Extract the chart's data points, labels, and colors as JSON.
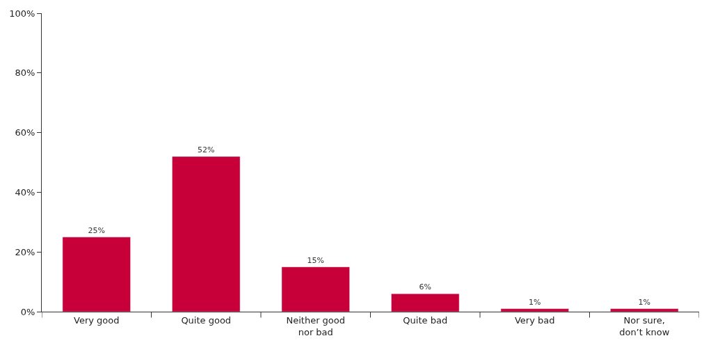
{
  "chart_data": {
    "type": "bar",
    "categories": [
      "Very good",
      "Quite good",
      "Neither good\nnor bad",
      "Quite bad",
      "Very bad",
      "Nor sure,\ndon’t know"
    ],
    "values": [
      25,
      52,
      15,
      6,
      1,
      1
    ],
    "color": "#c8003a",
    "value_labels": [
      "25%",
      "52%",
      "15%",
      "6%",
      "1%",
      "1%"
    ],
    "ylim": [
      0,
      100
    ],
    "yticks": [
      {
        "value": 0,
        "label": "0%"
      },
      {
        "value": 20,
        "label": "20%"
      },
      {
        "value": 40,
        "label": "40%"
      },
      {
        "value": 60,
        "label": "60%"
      },
      {
        "value": 80,
        "label": "80%"
      },
      {
        "value": 100,
        "label": "100%"
      }
    ],
    "ylabel": null
  }
}
